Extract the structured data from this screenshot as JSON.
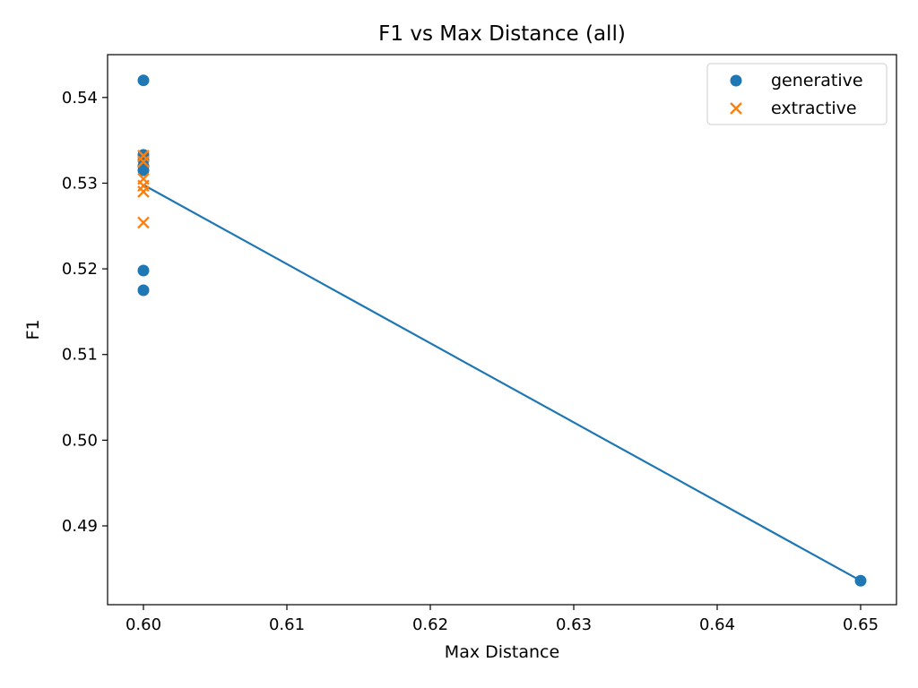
{
  "chart_data": {
    "type": "scatter",
    "title": "F1 vs Max Distance (all)",
    "xlabel": "Max Distance",
    "ylabel": "F1",
    "xlim": [
      0.5975,
      0.6525
    ],
    "ylim": [
      0.4808,
      0.545
    ],
    "xticks": [
      "0.60",
      "0.61",
      "0.62",
      "0.63",
      "0.64",
      "0.65"
    ],
    "yticks": [
      "0.49",
      "0.50",
      "0.51",
      "0.52",
      "0.53",
      "0.54"
    ],
    "grid": false,
    "legend_position": "top-right",
    "series": [
      {
        "name": "generative",
        "marker": "circle",
        "color": "#1f77b4",
        "points": [
          {
            "x": 0.6,
            "y": 0.542
          },
          {
            "x": 0.6,
            "y": 0.5333
          },
          {
            "x": 0.6,
            "y": 0.5327
          },
          {
            "x": 0.6,
            "y": 0.532
          },
          {
            "x": 0.6,
            "y": 0.5315
          },
          {
            "x": 0.6,
            "y": 0.5198
          },
          {
            "x": 0.6,
            "y": 0.5175
          },
          {
            "x": 0.65,
            "y": 0.4836
          }
        ]
      },
      {
        "name": "extractive",
        "marker": "x",
        "color": "#ff7f0e",
        "points": [
          {
            "x": 0.6,
            "y": 0.5332
          },
          {
            "x": 0.6,
            "y": 0.5325
          },
          {
            "x": 0.6,
            "y": 0.5305
          },
          {
            "x": 0.6,
            "y": 0.5297
          },
          {
            "x": 0.6,
            "y": 0.529
          },
          {
            "x": 0.6,
            "y": 0.5254
          }
        ]
      }
    ],
    "trend_line": {
      "color": "#1f77b4",
      "points": [
        {
          "x": 0.6,
          "y": 0.5298
        },
        {
          "x": 0.65,
          "y": 0.4836
        }
      ]
    }
  }
}
